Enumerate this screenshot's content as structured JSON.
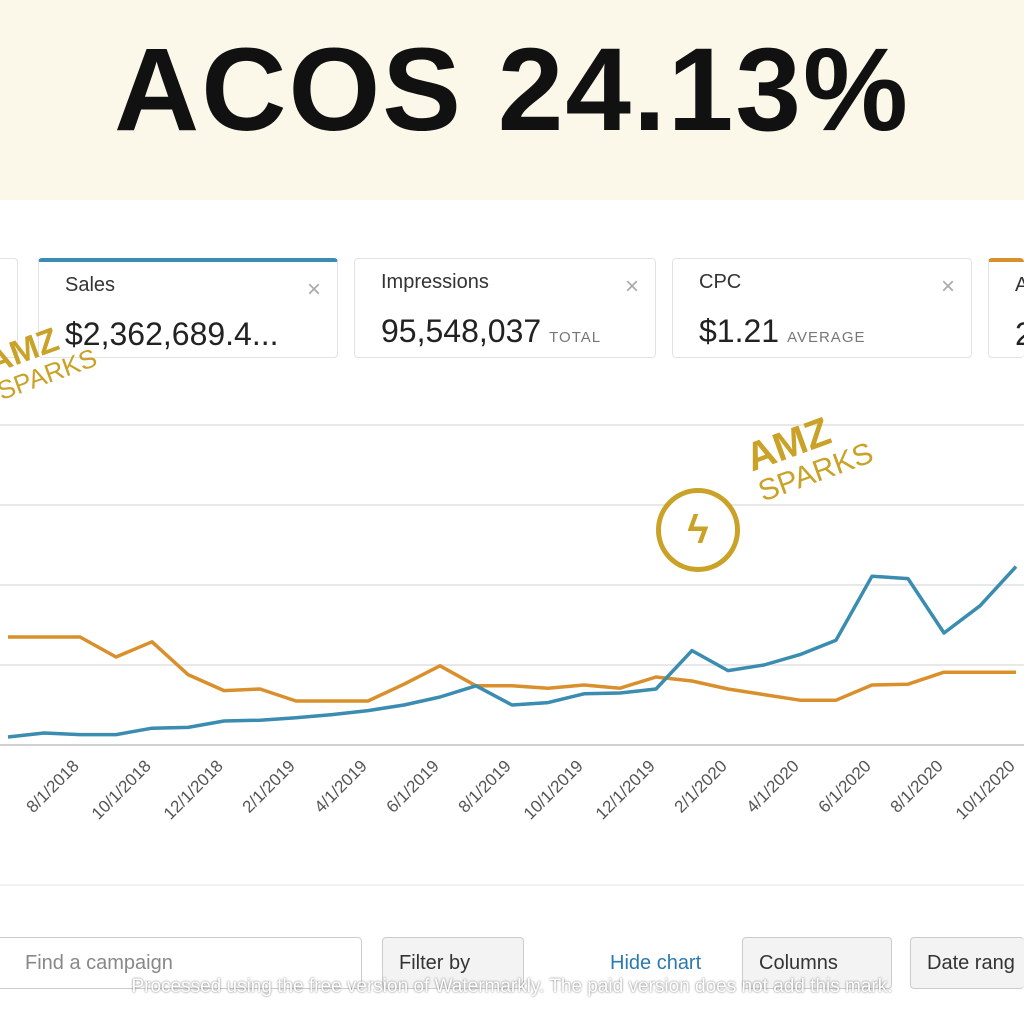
{
  "header": {
    "title": "ACOS 24.13%"
  },
  "cards": [
    {
      "label": "Sales",
      "value": "$2,362,689.4..."
    },
    {
      "label": "Impressions",
      "value": "95,548,037",
      "unit": "TOTAL"
    },
    {
      "label": "CPC",
      "value": "$1.21",
      "unit": "AVERAGE"
    },
    {
      "label": "A",
      "value": "2"
    }
  ],
  "watermarks": [
    {
      "line1": "AMZ",
      "line2": "SPARKS"
    },
    {
      "line1": "AMZ",
      "line2": "SPARKS"
    }
  ],
  "chart_data": {
    "type": "line",
    "categories": [
      null,
      null,
      "8/1/2018",
      null,
      "10/1/2018",
      null,
      "12/1/2018",
      null,
      "2/1/2019",
      null,
      "4/1/2019",
      null,
      "6/1/2019",
      null,
      "8/1/2019",
      null,
      "10/1/2019",
      null,
      "12/1/2019",
      null,
      "2/1/2020",
      null,
      "4/1/2020",
      null,
      "6/1/2020",
      null,
      "8/1/2020",
      null,
      "10/1/2020"
    ],
    "series": [
      {
        "color": "#d9902c",
        "values": [
          1.35,
          1.35,
          1.35,
          1.1,
          1.29,
          0.88,
          0.68,
          0.7,
          0.55,
          0.55,
          0.55,
          0.76,
          0.99,
          0.74,
          0.74,
          0.71,
          0.75,
          0.71,
          0.85,
          0.8,
          0.7,
          0.63,
          0.56,
          0.56,
          0.75,
          0.76,
          0.91,
          0.91,
          0.91
        ]
      },
      {
        "color": "#3a8cb0",
        "values": [
          0.1,
          0.15,
          0.13,
          0.13,
          0.21,
          0.22,
          0.3,
          0.31,
          0.34,
          0.38,
          0.43,
          0.5,
          0.6,
          0.74,
          0.5,
          0.53,
          0.64,
          0.65,
          0.7,
          1.18,
          0.93,
          1,
          1.13,
          1.31,
          2.11,
          2.08,
          1.4,
          1.74,
          2.23
        ]
      }
    ],
    "ylim": [
      0,
      4.5
    ],
    "yticks": [
      0,
      1,
      2,
      3,
      4
    ],
    "grid": true
  },
  "toolbar": {
    "search": "Find a campaign",
    "filter": "Filter by",
    "hide": "Hide chart",
    "columns": "Columns",
    "date": "Date rang"
  },
  "footer": {
    "notice": "Processed using the free version of Watermarkly. The paid version does not add this mark."
  }
}
